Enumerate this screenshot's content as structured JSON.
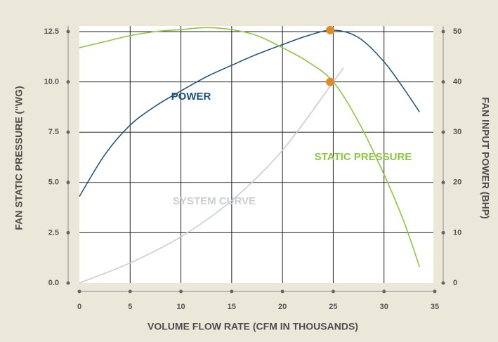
{
  "chart_data": {
    "type": "line",
    "xlabel": "VOLUME FLOW RATE (CFM IN THOUSANDS)",
    "ylabel": "FAN STATIC PRESSURE (\"WG)",
    "y2label": "FAN INPUT POWER (BHP)",
    "xlim": [
      0,
      35
    ],
    "xticks": [
      0,
      5,
      10,
      15,
      20,
      25,
      30,
      35
    ],
    "ylim": [
      0,
      12.5
    ],
    "yticks": [
      {
        "value": 0,
        "label": "0.0"
      },
      2.5,
      {
        "value": 5,
        "label": "5.0"
      },
      7.5,
      {
        "value": 10,
        "label": "10.0"
      },
      12.5
    ],
    "y2lim": [
      0,
      50
    ],
    "y2ticks": [
      0,
      10,
      20,
      30,
      40,
      50
    ],
    "grid": true,
    "series": [
      {
        "name": "POWER",
        "color": "#1b4f7e",
        "axis": "y2",
        "x": [
          0,
          2.5,
          5,
          7.5,
          10,
          12.5,
          15,
          17.5,
          20,
          22.5,
          25,
          27.5,
          30,
          32,
          33.5
        ],
        "values": [
          17.2,
          25.5,
          31.4,
          35.2,
          38.2,
          41,
          43.3,
          45.5,
          47.4,
          49.2,
          50.3,
          48.8,
          44,
          38.5,
          34
        ]
      },
      {
        "name": "STATIC PRESSURE",
        "color": "#8dc63f",
        "axis": "y",
        "x": [
          0,
          2.5,
          5,
          7.5,
          10,
          12.5,
          15,
          17.5,
          20,
          22.5,
          25,
          27.5,
          30,
          32,
          33.5
        ],
        "values": [
          11.7,
          12.0,
          12.3,
          12.5,
          12.6,
          12.7,
          12.6,
          12.3,
          11.7,
          11.0,
          10.0,
          8.0,
          5.4,
          3.0,
          0.8
        ]
      },
      {
        "name": "SYSTEM CURVE",
        "color": "#c9ced3",
        "axis": "y",
        "x": [
          0,
          5,
          10,
          15,
          20,
          25,
          26
        ],
        "values": [
          0,
          1.0,
          2.3,
          4.1,
          6.6,
          10.0,
          10.7
        ]
      }
    ],
    "markers": [
      {
        "x": 24.7,
        "y": 10.0,
        "axis": "y",
        "color": "#e08a2a"
      },
      {
        "x": 24.7,
        "y": 50.3,
        "axis": "y2",
        "color": "#e08a2a"
      }
    ]
  }
}
